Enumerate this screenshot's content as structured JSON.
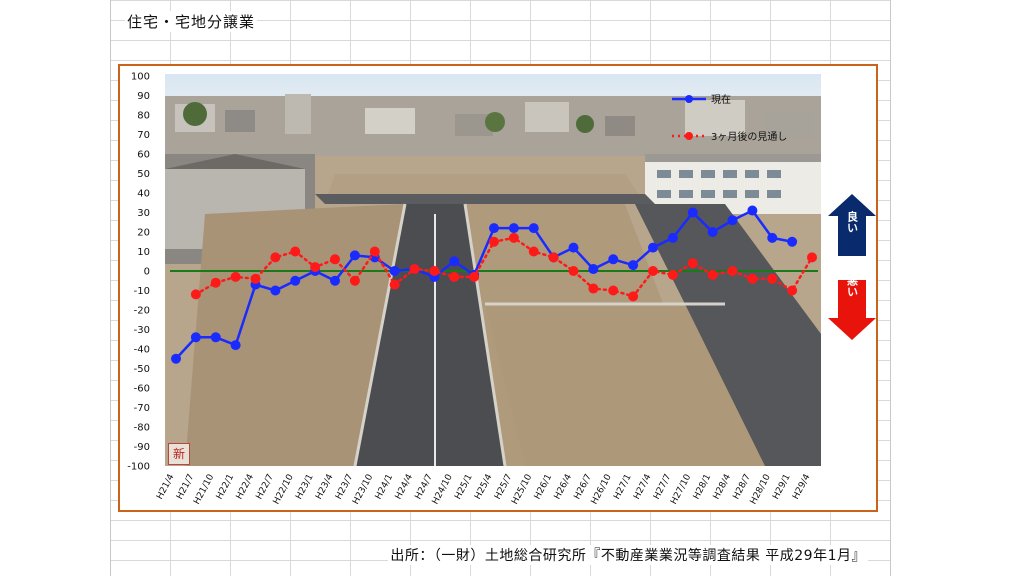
{
  "title": "住宅・宅地分譲業",
  "source": "出所：（一財）土地総合研究所『不動産業業況等調査結果 平成29年1月』",
  "photo_badge": "新",
  "arrows": {
    "good": "良い",
    "bad": "悪い",
    "good_color": "#0a2a6e",
    "bad_color": "#e8140c"
  },
  "chart_data": {
    "type": "line",
    "title": "",
    "xlabel": "",
    "ylabel": "",
    "ylim": [
      -100,
      100
    ],
    "yticks": [
      100,
      90,
      80,
      70,
      60,
      50,
      40,
      30,
      20,
      10,
      0,
      -10,
      -20,
      -30,
      -40,
      -50,
      -60,
      -70,
      -80,
      -90,
      -100
    ],
    "categories": [
      "H21/4",
      "H21/7",
      "H21/10",
      "H22/1",
      "H22/4",
      "H22/7",
      "H22/10",
      "H23/1",
      "H23/4",
      "H23/7",
      "H23/10",
      "H24/1",
      "H24/4",
      "H24/7",
      "H24/10",
      "H25/1",
      "H25/4",
      "H25/7",
      "H25/10",
      "H26/1",
      "H26/4",
      "H26/7",
      "H26/10",
      "H27/1",
      "H27/4",
      "H27/7",
      "H27/10",
      "H28/1",
      "H28/4",
      "H28/7",
      "H28/10",
      "H29/1",
      "H29/4"
    ],
    "series": [
      {
        "name": "現在",
        "color": "#1a2bff",
        "style": "solid",
        "values": [
          -45,
          -34,
          -34,
          -38,
          -7,
          -10,
          -5,
          0,
          -5,
          8,
          7,
          0,
          1,
          -3,
          5,
          -2,
          22,
          22,
          22,
          7,
          12,
          1,
          6,
          3,
          12,
          17,
          30,
          20,
          26,
          31,
          17,
          15,
          null
        ]
      },
      {
        "name": "3ヶ月後の見通し",
        "color": "#ff1a1a",
        "style": "dotted",
        "values": [
          null,
          -12,
          -6,
          -3,
          -4,
          7,
          10,
          2,
          6,
          -5,
          10,
          -7,
          1,
          0,
          -3,
          -3,
          15,
          17,
          10,
          7,
          0,
          -9,
          -10,
          -13,
          0,
          -2,
          4,
          -2,
          0,
          -4,
          -4,
          -10,
          7
        ]
      }
    ],
    "baseline": {
      "value": 0,
      "color": "#1a7a1a"
    },
    "legend_position": "top-right"
  }
}
